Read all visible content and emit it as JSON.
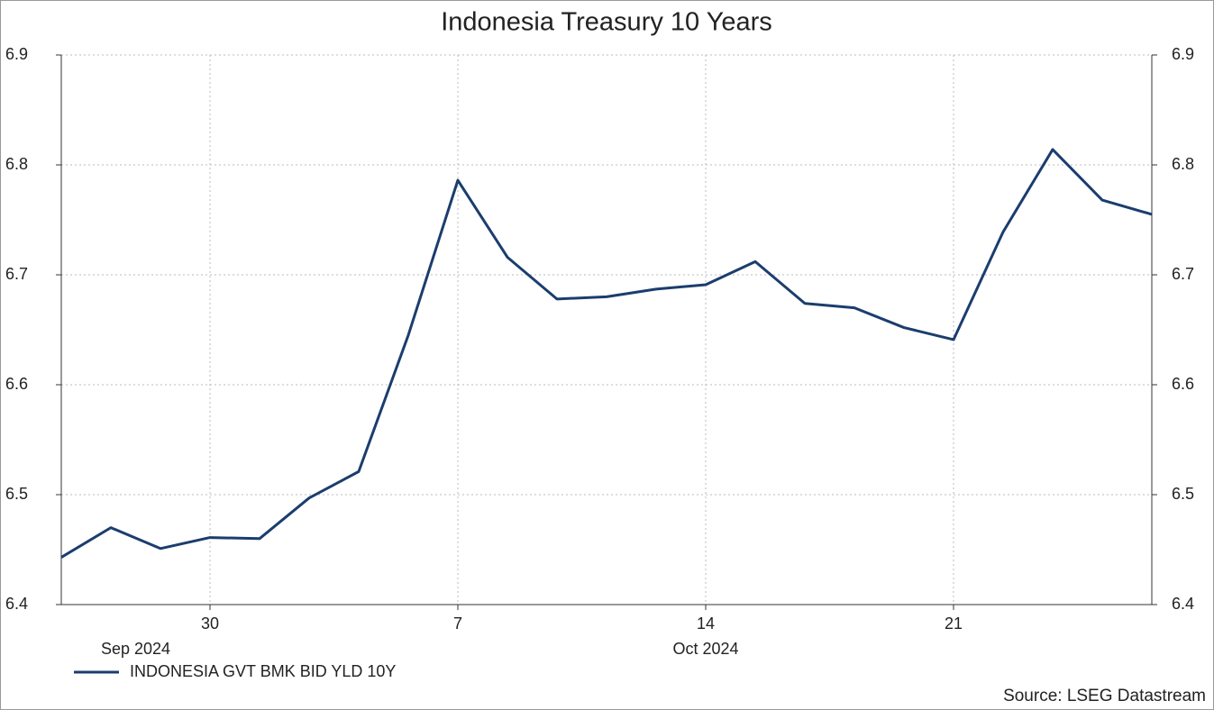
{
  "chart_data": {
    "type": "line",
    "title": "Indonesia Treasury 10 Years",
    "source": "Source: LSEG Datastream",
    "categories": [
      null,
      null,
      null,
      "30",
      null,
      null,
      null,
      null,
      "7",
      null,
      null,
      null,
      null,
      "14",
      null,
      null,
      null,
      null,
      "21",
      null,
      null,
      null,
      null
    ],
    "months": [
      {
        "label": "Sep 2024",
        "first": 0,
        "last": 3
      },
      {
        "label": "Oct 2024",
        "first": 4,
        "last": 22
      }
    ],
    "series": [
      {
        "name": "INDONESIA GVT BMK BID YLD 10Y",
        "color": "#1b3d6e",
        "values": [
          6.443,
          6.47,
          6.451,
          6.461,
          6.46,
          6.497,
          6.521,
          6.645,
          6.786,
          6.716,
          6.678,
          6.68,
          6.687,
          6.691,
          6.712,
          6.674,
          6.67,
          6.652,
          6.641,
          6.739,
          6.814,
          6.768,
          6.755
        ]
      }
    ],
    "ylim": [
      6.4,
      6.9
    ],
    "yticks": [
      6.4,
      6.5,
      6.6,
      6.7,
      6.8,
      6.9
    ],
    "y2lim": [
      6.4,
      6.9
    ],
    "y2ticks": [
      6.4,
      6.5,
      6.6,
      6.7,
      6.8,
      6.9
    ],
    "grid": true,
    "legend": "bottom-left"
  }
}
